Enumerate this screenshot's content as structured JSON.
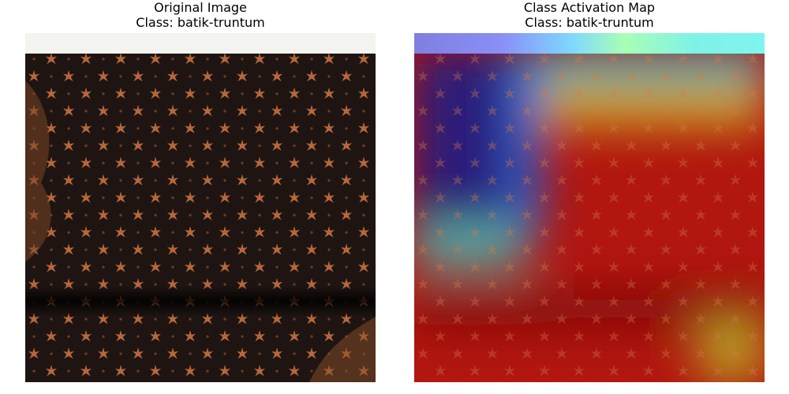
{
  "panels": [
    {
      "title": "Original Image",
      "class_line": "Class: batik-truntum"
    },
    {
      "title": "Class Activation Map",
      "class_line": "Class: batik-truntum"
    }
  ],
  "colors": {
    "fabric_dark": "#1e1512",
    "motif_copper": "#b8673a",
    "top_strip": "#f3f4ef",
    "heat_hot": "#b1160f",
    "heat_cold": "#2b1e7a"
  }
}
